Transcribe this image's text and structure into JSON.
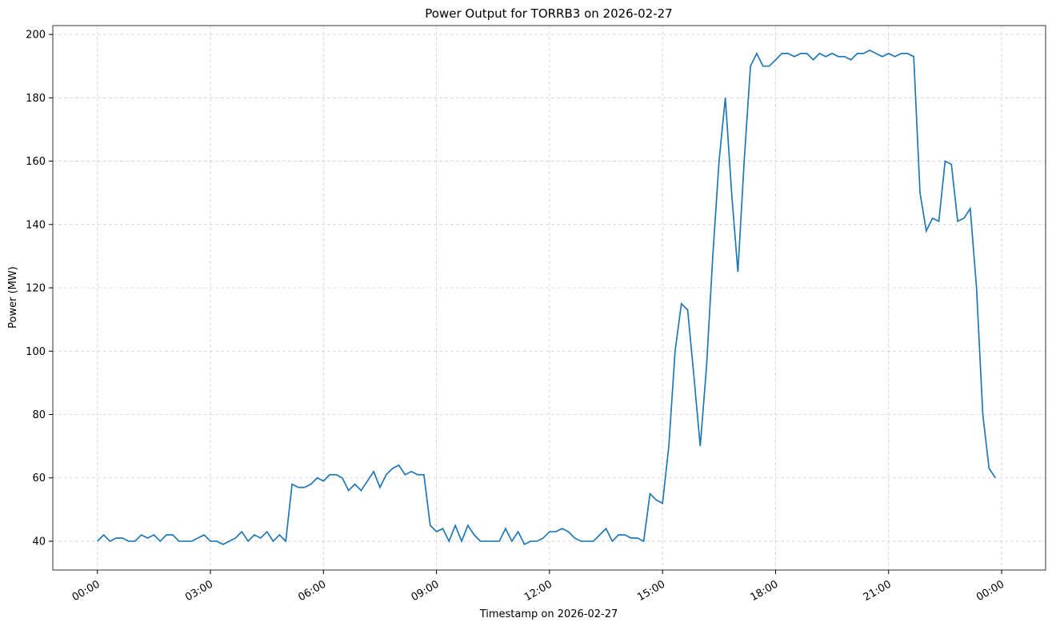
{
  "chart_data": {
    "type": "line",
    "title": "Power Output for TORRB3 on 2026-02-27",
    "x_label": "Timestamp on 2026-02-27",
    "y_label": "Power (MW)",
    "grid": true,
    "x": [
      0,
      10,
      20,
      30,
      40,
      50,
      60,
      70,
      80,
      90,
      100,
      110,
      120,
      130,
      140,
      150,
      160,
      170,
      180,
      190,
      200,
      210,
      220,
      230,
      240,
      250,
      260,
      270,
      280,
      290,
      300,
      310,
      320,
      330,
      340,
      350,
      360,
      370,
      380,
      390,
      400,
      410,
      420,
      430,
      440,
      450,
      460,
      470,
      480,
      490,
      500,
      510,
      520,
      530,
      540,
      550,
      560,
      570,
      580,
      590,
      600,
      610,
      620,
      630,
      640,
      650,
      660,
      670,
      680,
      690,
      700,
      710,
      720,
      730,
      740,
      750,
      760,
      770,
      780,
      790,
      800,
      810,
      820,
      830,
      840,
      850,
      860,
      870,
      880,
      890,
      900,
      910,
      920,
      930,
      940,
      950,
      960,
      970,
      980,
      990,
      1000,
      1010,
      1020,
      1030,
      1040,
      1050,
      1060,
      1070,
      1080,
      1090,
      1100,
      1110,
      1120,
      1130,
      1140,
      1150,
      1160,
      1170,
      1180,
      1190,
      1200,
      1210,
      1220,
      1230,
      1240,
      1250,
      1260,
      1270,
      1280,
      1290,
      1300,
      1310,
      1320,
      1330,
      1340,
      1350,
      1360,
      1370,
      1380,
      1390,
      1400,
      1410,
      1420,
      1430
    ],
    "series": [
      {
        "name": "Power",
        "color": "#1f77b4",
        "values": [
          40,
          42,
          40,
          41,
          41,
          40,
          40,
          42,
          41,
          42,
          40,
          42,
          42,
          40,
          40,
          40,
          41,
          42,
          40,
          40,
          39,
          40,
          41,
          43,
          40,
          42,
          41,
          43,
          40,
          42,
          40,
          58,
          57,
          57,
          58,
          60,
          59,
          61,
          61,
          60,
          56,
          58,
          56,
          59,
          62,
          57,
          61,
          63,
          64,
          61,
          62,
          61,
          61,
          45,
          43,
          44,
          40,
          45,
          40,
          45,
          42,
          40,
          40,
          40,
          40,
          44,
          40,
          43,
          39,
          40,
          40,
          41,
          43,
          43,
          44,
          43,
          41,
          40,
          40,
          40,
          42,
          44,
          40,
          42,
          42,
          41,
          41,
          40,
          55,
          53,
          52,
          70,
          100,
          115,
          113,
          92,
          70,
          95,
          130,
          160,
          180,
          150,
          125,
          160,
          190,
          194,
          190,
          190,
          192,
          194,
          194,
          193,
          194,
          194,
          192,
          194,
          193,
          194,
          193,
          193,
          192,
          194,
          194,
          195,
          194,
          193,
          194,
          193,
          194,
          194,
          193,
          150,
          138,
          142,
          141,
          160,
          159,
          141,
          142,
          145,
          120,
          80,
          63,
          60
        ]
      }
    ],
    "xlim": [
      -71,
      1510
    ],
    "xticks": [
      {
        "value": 0,
        "label": "00:00"
      },
      {
        "value": 180,
        "label": "03:00"
      },
      {
        "value": 360,
        "label": "06:00"
      },
      {
        "value": 540,
        "label": "09:00"
      },
      {
        "value": 720,
        "label": "12:00"
      },
      {
        "value": 900,
        "label": "15:00"
      },
      {
        "value": 1080,
        "label": "18:00"
      },
      {
        "value": 1260,
        "label": "21:00"
      },
      {
        "value": 1440,
        "label": "00:00"
      }
    ],
    "ylim": [
      30.9,
      202.8
    ],
    "yticks": [
      40,
      60,
      80,
      100,
      120,
      140,
      160,
      180,
      200
    ]
  }
}
